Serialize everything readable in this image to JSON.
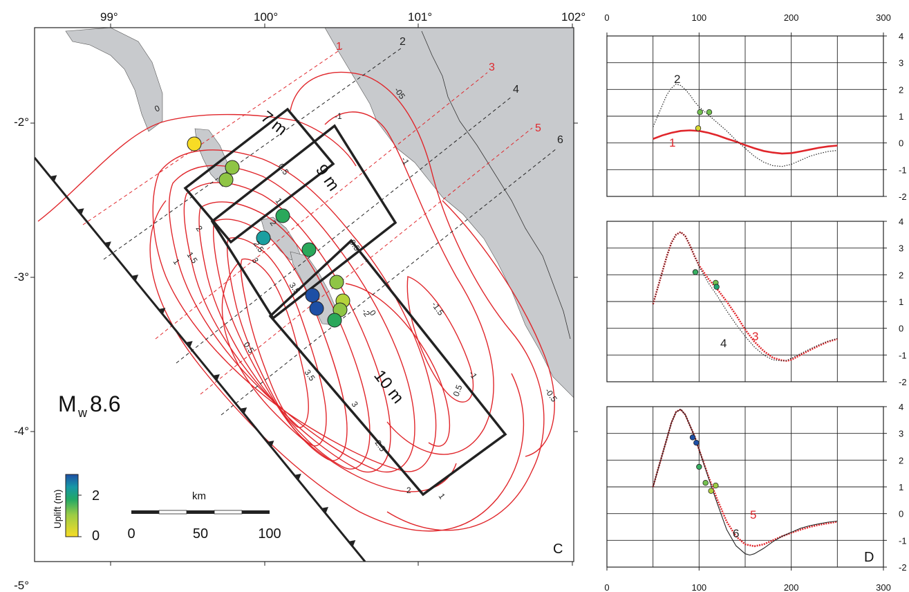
{
  "map": {
    "lon_ticks": [
      "99°",
      "100°",
      "101°",
      "102°"
    ],
    "lat_ticks": [
      "-2°",
      "-3°",
      "-4°",
      "-5°"
    ],
    "magnitude_prefix": "M",
    "magnitude_sub": "w",
    "magnitude_value": "8.6",
    "panel_letter": "C",
    "patch_labels": [
      "7 m",
      "9 m",
      "10 m"
    ],
    "profile_labels": [
      "1",
      "2",
      "3",
      "4",
      "5",
      "6"
    ],
    "contour_labels": [
      "0",
      "-05",
      "-1",
      "-1",
      "0.5",
      "1",
      "2",
      "2.5",
      "3",
      "3.5",
      "2",
      "1.5",
      "1",
      "0.5",
      "0.5",
      "0",
      "-1.5",
      "-1",
      "-0.5",
      "0.5",
      "3",
      "3.5",
      "2.5",
      "2",
      "-2",
      "1"
    ],
    "colorbar_title": "Uplift (m)",
    "colorbar_ticks": [
      "0",
      "2"
    ],
    "scalebar_title": "km",
    "scalebar_ticks": [
      "0",
      "50",
      "100"
    ],
    "colors": {
      "contour": "#e0262b",
      "profile_red": "#e0262b",
      "profile_black": "#222222",
      "land": "#c8cacd",
      "frame": "#222222"
    }
  },
  "chart_data": [
    {
      "type": "line",
      "panel": "top",
      "x_ticks": [
        "0",
        "100",
        "200",
        "300"
      ],
      "y_ticks": [
        "4",
        "3",
        "2",
        "1",
        "0",
        "-1",
        "-2"
      ],
      "xlim": [
        0,
        300
      ],
      "ylim": [
        -2,
        4
      ],
      "grid": true,
      "series": [
        {
          "name": "1",
          "color": "#e0262b",
          "style": "solid",
          "x": [
            50,
            60,
            70,
            80,
            90,
            100,
            110,
            120,
            130,
            140,
            150,
            160,
            170,
            180,
            190,
            200,
            210,
            220,
            230,
            240,
            250
          ],
          "y": [
            0.15,
            0.28,
            0.38,
            0.45,
            0.47,
            0.45,
            0.38,
            0.28,
            0.16,
            0.05,
            -0.08,
            -0.2,
            -0.3,
            -0.36,
            -0.4,
            -0.38,
            -0.32,
            -0.25,
            -0.18,
            -0.13,
            -0.1
          ]
        },
        {
          "name": "2",
          "color": "#222222",
          "style": "dotted",
          "x": [
            50,
            55,
            60,
            65,
            70,
            75,
            80,
            85,
            90,
            95,
            100,
            110,
            120,
            130,
            140,
            150,
            160,
            170,
            180,
            190,
            200,
            210,
            220,
            230,
            240,
            250
          ],
          "y": [
            0.6,
            1.0,
            1.4,
            1.8,
            2.05,
            2.2,
            2.15,
            2.0,
            1.8,
            1.55,
            1.35,
            1.05,
            0.75,
            0.45,
            0.1,
            -0.2,
            -0.5,
            -0.72,
            -0.85,
            -0.88,
            -0.8,
            -0.65,
            -0.5,
            -0.4,
            -0.32,
            -0.28
          ]
        }
      ],
      "points": [
        {
          "x": 99,
          "y": 0.55,
          "uplift": 0.3
        },
        {
          "x": 101,
          "y": 1.15,
          "uplift": 1.1
        },
        {
          "x": 111,
          "y": 1.15,
          "uplift": 1.1
        }
      ]
    },
    {
      "type": "line",
      "panel": "middle",
      "x_ticks": [],
      "y_ticks": [
        "4",
        "3",
        "2",
        "1",
        "0",
        "-1",
        "-2"
      ],
      "xlim": [
        0,
        300
      ],
      "ylim": [
        -2,
        4
      ],
      "grid": true,
      "series": [
        {
          "name": "3",
          "color": "#e0262b",
          "style": "dotted-thick",
          "x": [
            50,
            55,
            60,
            65,
            70,
            75,
            80,
            85,
            90,
            95,
            100,
            110,
            120,
            130,
            140,
            150,
            160,
            170,
            180,
            190,
            195,
            200,
            210,
            220,
            230,
            240,
            250
          ],
          "y": [
            0.9,
            1.5,
            2.1,
            2.7,
            3.2,
            3.5,
            3.6,
            3.45,
            3.1,
            2.7,
            2.35,
            1.85,
            1.45,
            1.0,
            0.5,
            -0.05,
            -0.5,
            -0.85,
            -1.1,
            -1.2,
            -1.22,
            -1.18,
            -1.0,
            -0.82,
            -0.65,
            -0.5,
            -0.4
          ]
        },
        {
          "name": "4",
          "color": "#222222",
          "style": "dotted",
          "x": [
            50,
            55,
            60,
            65,
            70,
            75,
            80,
            85,
            90,
            95,
            100,
            110,
            120,
            130,
            140,
            150,
            160,
            170,
            180,
            190,
            195,
            200,
            210,
            220,
            230,
            240,
            250
          ],
          "y": [
            0.9,
            1.5,
            2.1,
            2.7,
            3.2,
            3.5,
            3.6,
            3.45,
            3.1,
            2.7,
            2.3,
            1.7,
            1.2,
            0.65,
            0.15,
            -0.3,
            -0.7,
            -1.0,
            -1.18,
            -1.22,
            -1.2,
            -1.12,
            -0.95,
            -0.78,
            -0.62,
            -0.48,
            -0.38
          ]
        }
      ],
      "points": [
        {
          "x": 96,
          "y": 2.1,
          "uplift": 1.4
        },
        {
          "x": 118,
          "y": 1.7,
          "uplift": 1.1
        },
        {
          "x": 119,
          "y": 1.55,
          "uplift": 1.6
        }
      ]
    },
    {
      "type": "line",
      "panel": "bottom",
      "x_ticks": [
        "0",
        "100",
        "200",
        "300"
      ],
      "y_ticks": [
        "4",
        "3",
        "2",
        "1",
        "0",
        "-1",
        "-2"
      ],
      "xlim": [
        0,
        300
      ],
      "ylim": [
        -2,
        4
      ],
      "grid": true,
      "panel_letter": "D",
      "series": [
        {
          "name": "5",
          "color": "#e0262b",
          "style": "dotted-thick",
          "x": [
            50,
            55,
            60,
            65,
            70,
            75,
            80,
            85,
            90,
            95,
            100,
            110,
            120,
            130,
            140,
            150,
            160,
            170,
            180,
            190,
            200,
            210,
            220,
            230,
            240,
            250
          ],
          "y": [
            1.0,
            1.6,
            2.2,
            2.8,
            3.4,
            3.8,
            3.9,
            3.7,
            3.3,
            2.9,
            2.4,
            1.4,
            0.5,
            -0.3,
            -0.85,
            -1.15,
            -1.22,
            -1.15,
            -1.0,
            -0.85,
            -0.72,
            -0.6,
            -0.5,
            -0.42,
            -0.36,
            -0.3
          ]
        },
        {
          "name": "6",
          "color": "#222222",
          "style": "solid-thin",
          "x": [
            50,
            55,
            60,
            65,
            70,
            75,
            80,
            85,
            90,
            95,
            100,
            110,
            120,
            130,
            140,
            150,
            155,
            160,
            170,
            180,
            190,
            200,
            210,
            220,
            230,
            240,
            250
          ],
          "y": [
            1.0,
            1.6,
            2.2,
            2.8,
            3.4,
            3.8,
            3.9,
            3.7,
            3.3,
            2.9,
            2.4,
            1.35,
            0.35,
            -0.6,
            -1.2,
            -1.5,
            -1.55,
            -1.5,
            -1.3,
            -1.05,
            -0.85,
            -0.7,
            -0.55,
            -0.45,
            -0.38,
            -0.32,
            -0.28
          ]
        }
      ],
      "points": [
        {
          "x": 93,
          "y": 2.85,
          "uplift": 2.6
        },
        {
          "x": 97,
          "y": 2.65,
          "uplift": 2.6
        },
        {
          "x": 100,
          "y": 1.75,
          "uplift": 1.4
        },
        {
          "x": 107,
          "y": 1.15,
          "uplift": 1.1
        },
        {
          "x": 113,
          "y": 0.85,
          "uplift": 0.7
        },
        {
          "x": 118,
          "y": 1.05,
          "uplift": 0.9
        }
      ]
    }
  ]
}
